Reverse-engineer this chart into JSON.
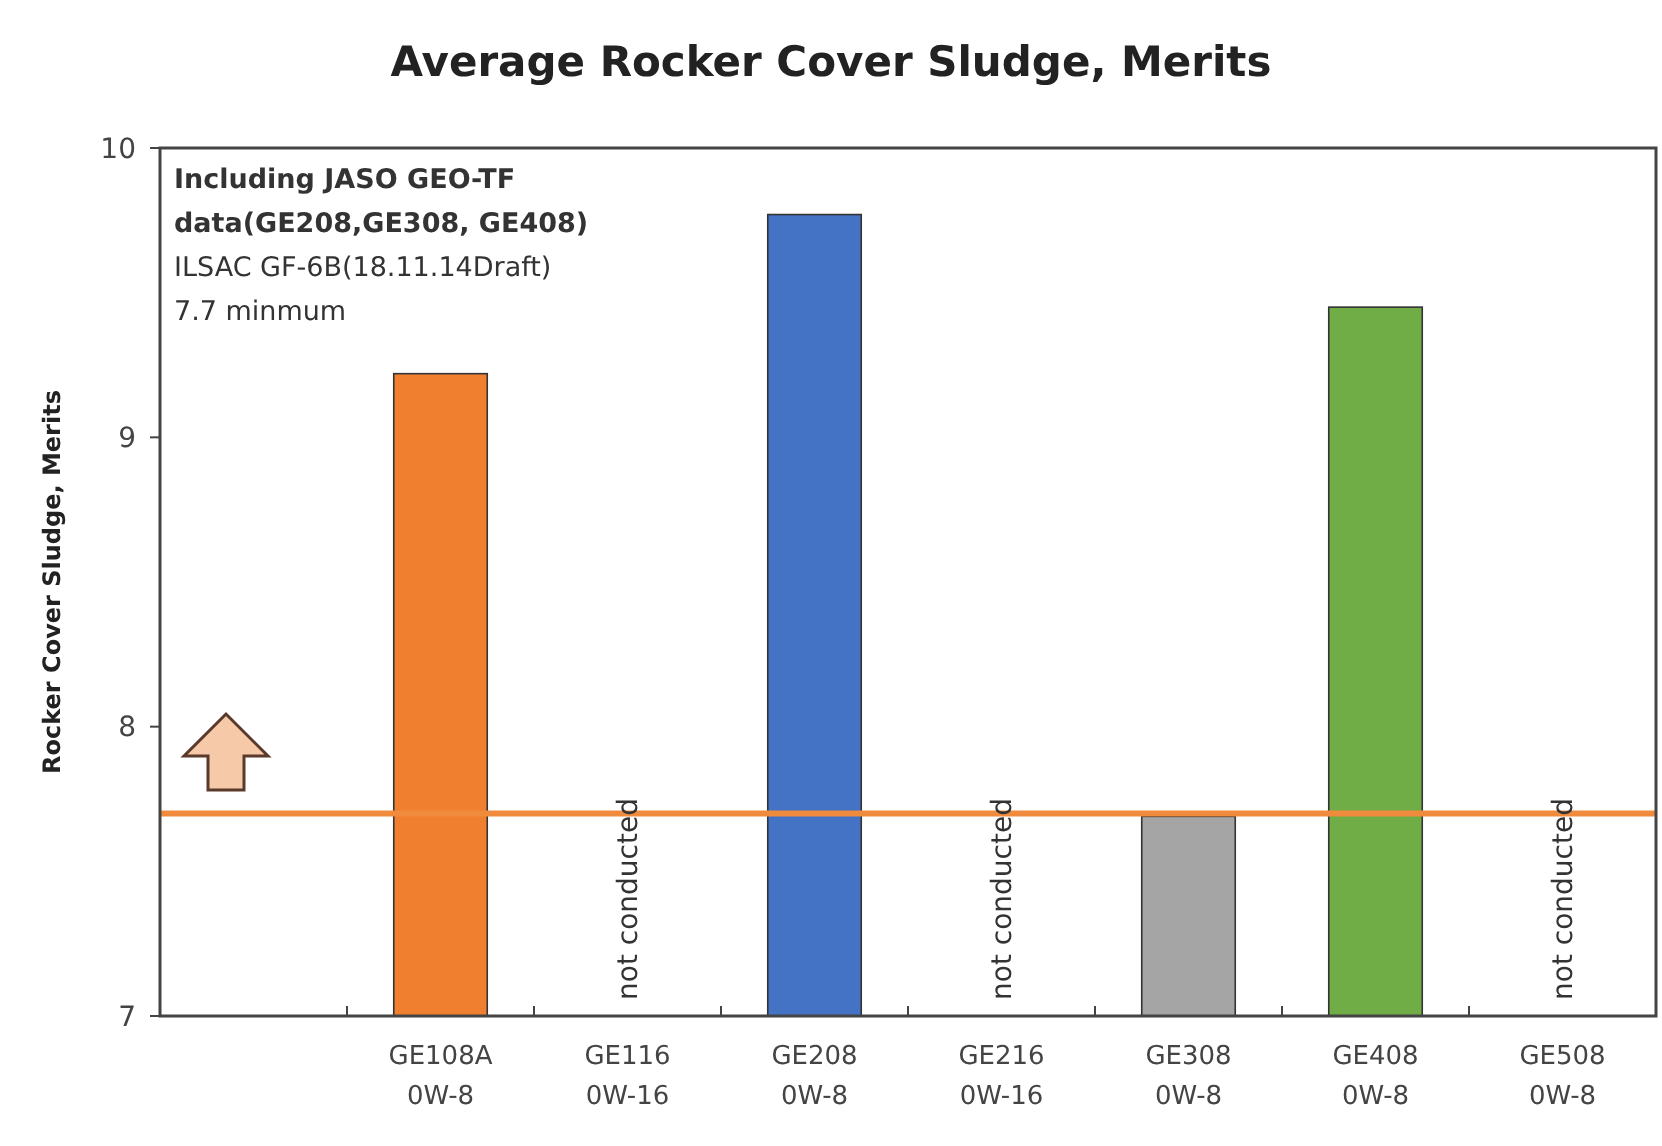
{
  "chart_data": {
    "type": "bar",
    "title": "Average Rocker Cover Sludge, Merits",
    "ylabel": "Rocker Cover Sludge, Merits",
    "categories": [
      null,
      "GE108A\n0W-8",
      "GE116\n0W-16",
      "GE208\n0W-8",
      "GE216\n0W-16",
      "GE308\n0W-8",
      "GE408\n0W-8",
      "GE508\n0W-8"
    ],
    "values": [
      null,
      9.22,
      null,
      9.77,
      null,
      7.69,
      9.45,
      null
    ],
    "value_labels": [
      null,
      null,
      "not conducted",
      null,
      "not conducted",
      null,
      null,
      "not conducted"
    ],
    "colors": [
      null,
      "#f08030",
      null,
      "#4472c4",
      null,
      "#a5a5a5",
      "#70ad47",
      null
    ],
    "ylim": [
      7,
      10
    ],
    "yticks": [
      7,
      8,
      9,
      10
    ],
    "grid": false,
    "ref_lines": [
      {
        "axis": "y",
        "value": 7.7,
        "color": "#f08a3c",
        "line_style": "solid"
      }
    ],
    "annotations": [
      "Including JASO GEO-TF\ndata(GE208,GE308, GE408)",
      "ILSAC GF-6B(18.11.14Draft)\n7.7 minmum"
    ]
  }
}
